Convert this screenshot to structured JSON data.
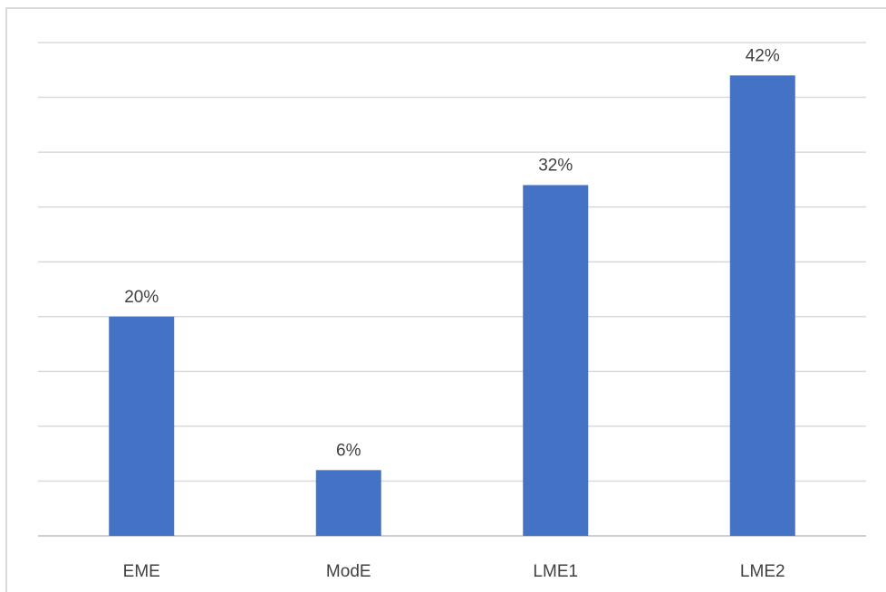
{
  "chart_data": {
    "type": "bar",
    "title": "",
    "xlabel": "",
    "ylabel": "",
    "categories": [
      "EME",
      "ModE",
      "LME1",
      "LME2"
    ],
    "values": [
      20,
      6,
      32,
      42
    ],
    "data_labels": [
      "20%",
      "6%",
      "32%",
      "42%"
    ],
    "unit": "%",
    "ylim": [
      0,
      45
    ],
    "grid_step": 5,
    "grid": true,
    "legend": "none",
    "bar_color": "#4472c4",
    "gridline_color": "#d9d9d9"
  }
}
